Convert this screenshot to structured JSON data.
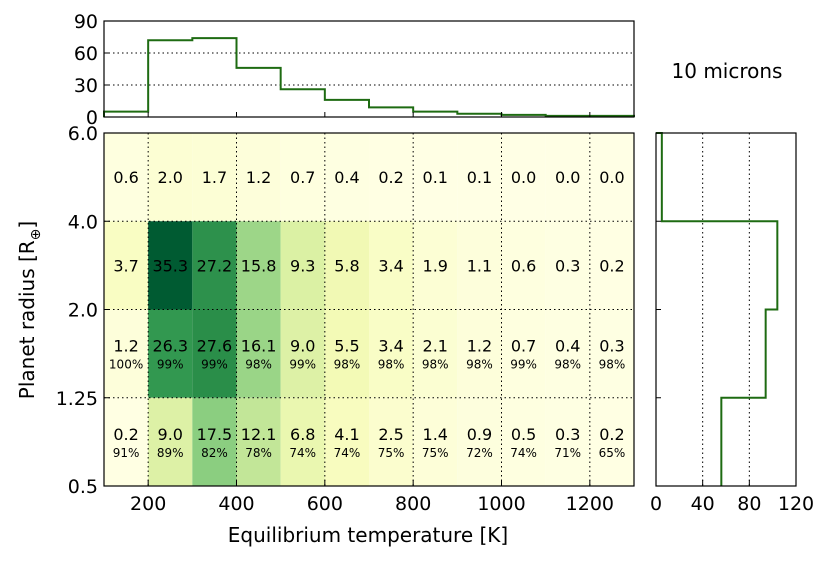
{
  "chart_data": [
    {
      "id": "top_hist",
      "type": "bar",
      "style": "step",
      "bin_edges": [
        100,
        200,
        300,
        400,
        500,
        600,
        700,
        800,
        900,
        1000,
        1100,
        1200,
        1300
      ],
      "values": [
        5,
        72,
        74,
        46,
        26,
        16,
        9,
        5,
        3,
        2,
        1,
        1
      ],
      "ylim": [
        0,
        90
      ],
      "yticks": [
        "0",
        "30",
        "60",
        "90"
      ],
      "grid": "dotted horizontal",
      "color": "#1e6b12"
    },
    {
      "id": "heatmap",
      "type": "heatmap",
      "xlabel": "Equilibrium temperature [K]",
      "ylabel": "Planet radius [R⊕]",
      "x_edges": [
        100,
        200,
        300,
        400,
        500,
        600,
        700,
        800,
        900,
        1000,
        1100,
        1200,
        1300
      ],
      "xticks": [
        "200",
        "400",
        "600",
        "800",
        "1000",
        "1200"
      ],
      "y_edges_labels": [
        "0.5",
        "1.25",
        "2.0",
        "4.0",
        "6.0"
      ],
      "rows": [
        {
          "radius_bin": "4.0-6.0",
          "values": [
            "0.6",
            "2.0",
            "1.7",
            "1.2",
            "0.7",
            "0.4",
            "0.2",
            "0.1",
            "0.1",
            "0.0",
            "0.0",
            "0.0"
          ],
          "percents": []
        },
        {
          "radius_bin": "2.0-4.0",
          "values": [
            "3.7",
            "35.3",
            "27.2",
            "15.8",
            "9.3",
            "5.8",
            "3.4",
            "1.9",
            "1.1",
            "0.6",
            "0.3",
            "0.2"
          ],
          "percents": []
        },
        {
          "radius_bin": "1.25-2.0",
          "values": [
            "1.2",
            "26.3",
            "27.6",
            "16.1",
            "9.0",
            "5.5",
            "3.4",
            "2.1",
            "1.2",
            "0.7",
            "0.4",
            "0.3"
          ],
          "percents": [
            "100%",
            "99%",
            "99%",
            "98%",
            "99%",
            "98%",
            "98%",
            "98%",
            "98%",
            "99%",
            "98%",
            "98%"
          ]
        },
        {
          "radius_bin": "0.5-1.25",
          "values": [
            "0.2",
            "9.0",
            "17.5",
            "12.1",
            "6.8",
            "4.1",
            "2.5",
            "1.4",
            "0.9",
            "0.5",
            "0.3",
            "0.2"
          ],
          "percents": [
            "91%",
            "89%",
            "82%",
            "78%",
            "74%",
            "74%",
            "75%",
            "75%",
            "72%",
            "74%",
            "71%",
            "65%"
          ]
        }
      ],
      "colormap": "YlGn",
      "color_max": 35.3,
      "grid": "dotted"
    },
    {
      "id": "right_hist",
      "type": "bar",
      "orientation": "horizontal",
      "style": "step",
      "bins": [
        "0.5-1.25",
        "1.25-2.0",
        "2.0-4.0",
        "4.0-6.0"
      ],
      "values": [
        56,
        94,
        104,
        5
      ],
      "xlim": [
        0,
        120
      ],
      "xticks": [
        "0",
        "40",
        "80",
        "120"
      ],
      "grid": "dotted vertical",
      "color": "#1e6b12"
    }
  ],
  "annotation": "10 microns"
}
